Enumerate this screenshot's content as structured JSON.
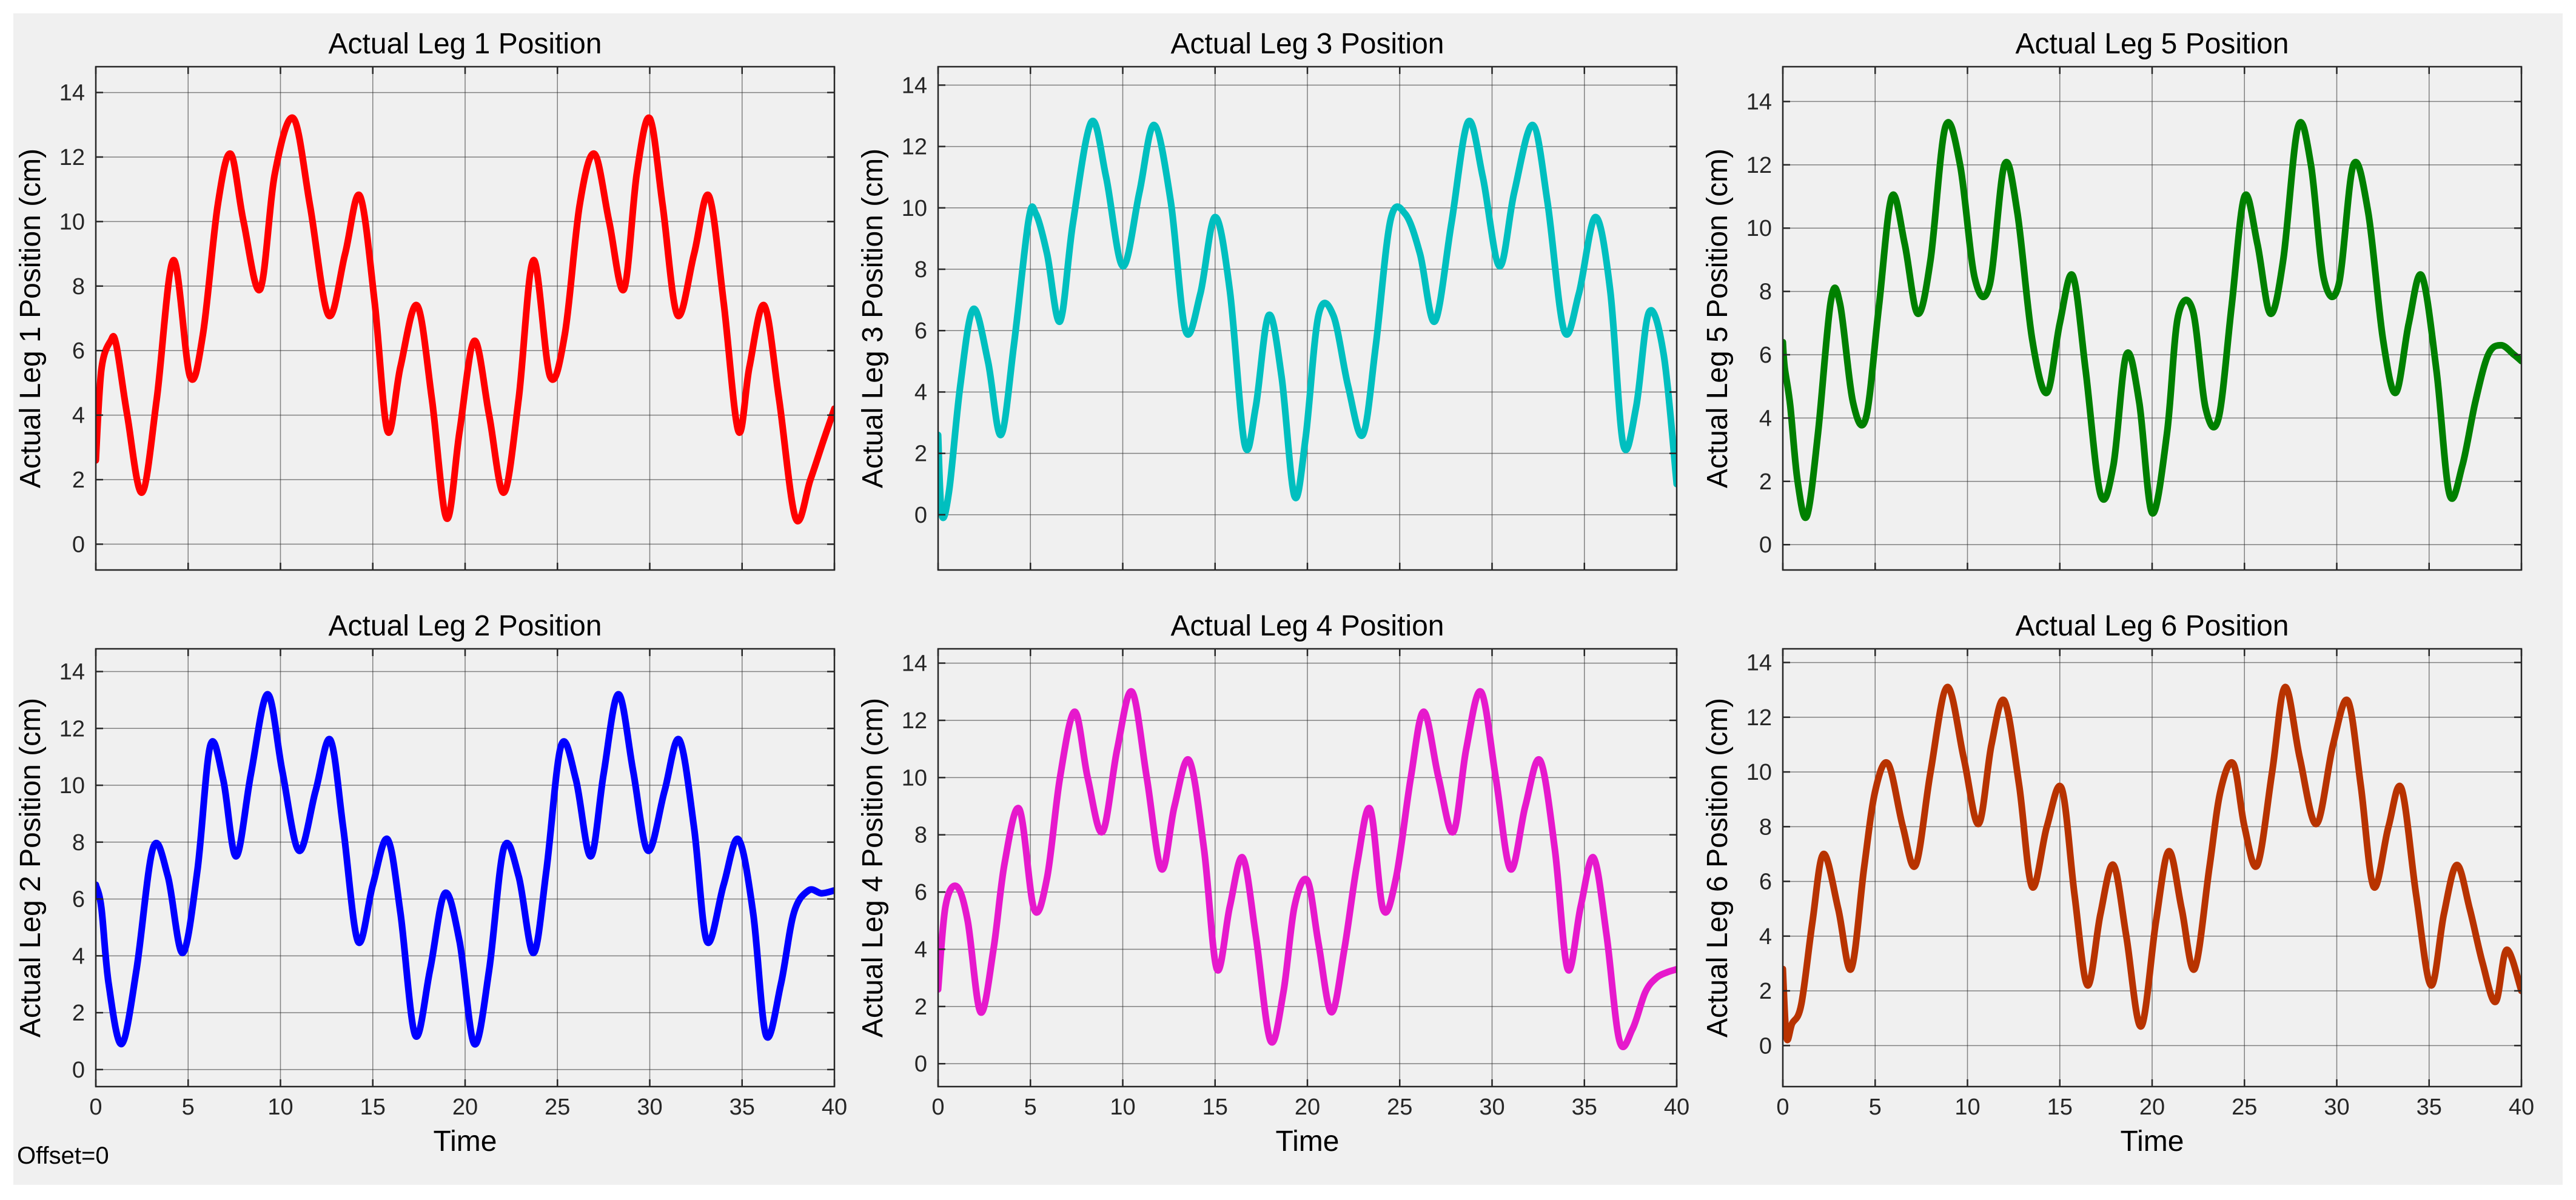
{
  "figure": {
    "background": "#f0f0f0",
    "axes_background": "#f0f0f0",
    "grid_color": "#262626",
    "offset_label": "Offset=0"
  },
  "chart_data": [
    {
      "type": "line",
      "title": "Actual Leg 1 Position",
      "xlabel": "",
      "ylabel": "Actual Leg 1 Position (cm)",
      "xlim": [
        0,
        40
      ],
      "ylim": [
        -0.8,
        14.8
      ],
      "xticks": [
        0,
        5,
        10,
        15,
        20,
        25,
        30,
        35,
        40
      ],
      "yticks": [
        0,
        2,
        4,
        6,
        8,
        10,
        12,
        14
      ],
      "show_xticklabels": false,
      "grid": true,
      "color": "#ff0000",
      "series": [
        {
          "name": "Leg 1",
          "x": [
            0,
            0.3,
            0.8,
            1.1,
            1.7,
            2.5,
            3.3,
            4.2,
            5.1,
            5.8,
            6.6,
            7.3,
            8.0,
            8.9,
            9.7,
            10.7,
            11.6,
            12.6,
            13.5,
            14.3,
            15.1,
            15.8,
            16.5,
            17.4,
            18.2,
            19.0,
            19.7,
            20.5,
            21.3,
            22.1,
            22.9,
            23.7,
            24.6,
            25.4,
            26.2,
            27.0,
            27.8,
            28.6,
            29.3,
            30.0,
            30.7,
            31.5,
            32.4,
            33.2,
            34.0,
            34.8,
            35.4,
            36.2,
            37.0,
            37.9,
            38.7,
            39.4,
            40.0
          ],
          "y": [
            2.6,
            5.4,
            6.3,
            6.2,
            4.0,
            1.6,
            4.5,
            8.8,
            5.2,
            6.5,
            10.5,
            12.1,
            10.0,
            7.9,
            11.5,
            13.2,
            10.5,
            7.1,
            9.0,
            10.8,
            7.5,
            3.5,
            5.5,
            7.4,
            4.5,
            0.8,
            3.5,
            6.3,
            4.0,
            1.6,
            4.5,
            8.8,
            5.2,
            6.5,
            10.5,
            12.1,
            10.0,
            7.9,
            11.5,
            13.2,
            10.5,
            7.1,
            9.0,
            10.8,
            7.5,
            3.5,
            5.5,
            7.4,
            4.5,
            0.8,
            2.0,
            3.2,
            4.2
          ]
        }
      ]
    },
    {
      "type": "line",
      "title": "Actual Leg 3 Position",
      "xlabel": "",
      "ylabel": "Actual Leg 3 Position (cm)",
      "xlim": [
        0,
        40
      ],
      "ylim": [
        -1.8,
        14.6
      ],
      "xticks": [
        0,
        5,
        10,
        15,
        20,
        25,
        30,
        35,
        40
      ],
      "yticks": [
        0,
        2,
        4,
        6,
        8,
        10,
        12,
        14
      ],
      "show_xticklabels": false,
      "grid": true,
      "color": "#00bfbf",
      "series": [
        {
          "name": "Leg 3",
          "x": [
            0,
            0.2,
            0.6,
            1.2,
            1.9,
            2.7,
            3.4,
            4.1,
            4.9,
            5.3,
            5.9,
            6.6,
            7.3,
            8.3,
            9.1,
            10.0,
            10.9,
            11.7,
            12.6,
            13.4,
            14.2,
            15.0,
            15.8,
            16.6,
            17.2,
            17.9,
            18.6,
            19.3,
            19.9,
            20.6,
            21.4,
            22.2,
            23.0,
            23.7,
            24.5,
            25.3,
            26.1,
            26.9,
            27.8,
            28.7,
            29.5,
            30.4,
            31.2,
            32.2,
            33.0,
            33.9,
            34.7,
            35.6,
            36.4,
            37.1,
            37.8,
            38.5,
            39.3,
            40.0
          ],
          "y": [
            2.6,
            0.0,
            0.8,
            4.2,
            6.7,
            5.0,
            2.6,
            5.5,
            9.6,
            9.8,
            8.5,
            6.3,
            9.5,
            12.8,
            11.0,
            8.1,
            10.5,
            12.7,
            10.2,
            6.0,
            7.2,
            9.7,
            7.3,
            2.3,
            3.5,
            6.5,
            4.5,
            0.6,
            2.5,
            6.5,
            6.5,
            4.2,
            2.6,
            5.5,
            9.6,
            9.8,
            8.5,
            6.3,
            9.5,
            12.8,
            11.0,
            8.1,
            10.5,
            12.7,
            10.2,
            6.0,
            7.2,
            9.7,
            7.3,
            2.3,
            3.5,
            6.6,
            5.2,
            1.0
          ]
        }
      ]
    },
    {
      "type": "line",
      "title": "Actual Leg 5 Position",
      "xlabel": "",
      "ylabel": "Actual Leg 5 Position (cm)",
      "xlim": [
        0,
        40
      ],
      "ylim": [
        -0.8,
        15.1
      ],
      "xticks": [
        0,
        5,
        10,
        15,
        20,
        25,
        30,
        35,
        40
      ],
      "yticks": [
        0,
        2,
        4,
        6,
        8,
        10,
        12,
        14
      ],
      "show_xticklabels": false,
      "grid": true,
      "color": "#008000",
      "series": [
        {
          "name": "Leg 5",
          "x": [
            0,
            0.1,
            0.4,
            0.8,
            1.3,
            1.9,
            2.6,
            3.1,
            3.8,
            4.5,
            5.2,
            5.9,
            6.6,
            7.3,
            8.0,
            8.8,
            9.6,
            10.4,
            11.2,
            12.0,
            12.7,
            13.5,
            14.3,
            15.0,
            15.7,
            16.4,
            17.2,
            17.9,
            18.6,
            19.3,
            20.0,
            20.8,
            21.4,
            22.2,
            22.9,
            23.6,
            24.3,
            25.0,
            25.7,
            26.4,
            27.1,
            27.9,
            28.6,
            29.3,
            30.1,
            30.9,
            31.7,
            32.5,
            33.2,
            33.9,
            34.6,
            35.4,
            36.1,
            36.8,
            37.5,
            38.2,
            38.9,
            39.6,
            40.0
          ],
          "y": [
            6.4,
            5.6,
            4.4,
            2.0,
            0.9,
            3.5,
            7.7,
            7.6,
            4.5,
            4.0,
            7.5,
            11.0,
            9.5,
            7.3,
            9.0,
            13.2,
            12.0,
            8.4,
            8.2,
            12.0,
            10.5,
            6.5,
            4.8,
            7.0,
            8.5,
            5.5,
            1.6,
            2.5,
            6.0,
            4.5,
            1.0,
            3.5,
            7.2,
            7.4,
            4.3,
            4.0,
            7.5,
            11.0,
            9.5,
            7.3,
            9.0,
            13.2,
            12.0,
            8.4,
            8.2,
            12.0,
            10.5,
            6.5,
            4.8,
            7.0,
            8.5,
            5.5,
            1.6,
            2.5,
            4.5,
            6.0,
            6.3,
            6.0,
            5.8
          ]
        }
      ]
    },
    {
      "type": "line",
      "title": "Actual Leg 2 Position",
      "xlabel": "Time",
      "ylabel": "Actual Leg 2 Position (cm)",
      "xlim": [
        0,
        40
      ],
      "ylim": [
        -0.6,
        14.8
      ],
      "xticks": [
        0,
        5,
        10,
        15,
        20,
        25,
        30,
        35,
        40
      ],
      "yticks": [
        0,
        2,
        4,
        6,
        8,
        10,
        12,
        14
      ],
      "show_xticklabels": true,
      "grid": true,
      "color": "#0000ff",
      "series": [
        {
          "name": "Leg 2",
          "x": [
            0,
            0.3,
            0.7,
            1.4,
            2.2,
            3.1,
            3.9,
            4.7,
            5.5,
            6.2,
            6.9,
            7.6,
            8.4,
            9.3,
            10.1,
            11.0,
            11.9,
            12.7,
            13.4,
            14.2,
            15.0,
            15.8,
            16.5,
            17.3,
            18.1,
            18.9,
            19.7,
            20.5,
            21.3,
            22.1,
            22.9,
            23.7,
            24.4,
            25.2,
            26.0,
            26.8,
            27.5,
            28.3,
            29.1,
            29.9,
            30.8,
            31.6,
            32.4,
            33.1,
            34.0,
            34.8,
            35.6,
            36.3,
            37.1,
            37.8,
            38.6,
            39.3,
            40.0
          ],
          "y": [
            6.5,
            5.7,
            3.0,
            0.9,
            3.5,
            7.8,
            6.8,
            4.1,
            7.0,
            11.4,
            10.2,
            7.5,
            10.4,
            13.2,
            10.5,
            7.7,
            9.8,
            11.6,
            8.5,
            4.5,
            6.5,
            8.1,
            5.5,
            1.2,
            3.5,
            6.2,
            4.5,
            0.9,
            3.5,
            7.8,
            6.8,
            4.1,
            7.0,
            11.4,
            10.2,
            7.5,
            10.4,
            13.2,
            10.5,
            7.7,
            9.8,
            11.6,
            8.5,
            4.5,
            6.5,
            8.1,
            5.5,
            1.2,
            3.0,
            5.5,
            6.3,
            6.2,
            6.3
          ]
        }
      ]
    },
    {
      "type": "line",
      "title": "Actual Leg 4 Position",
      "xlabel": "Time",
      "ylabel": "Actual Leg 4 Position (cm)",
      "xlim": [
        0,
        40
      ],
      "ylim": [
        -0.8,
        14.5
      ],
      "xticks": [
        0,
        5,
        10,
        15,
        20,
        25,
        30,
        35,
        40
      ],
      "yticks": [
        0,
        2,
        4,
        6,
        8,
        10,
        12,
        14
      ],
      "show_xticklabels": true,
      "grid": true,
      "color": "#e619cc",
      "series": [
        {
          "name": "Leg 4",
          "x": [
            0,
            0.4,
            1.0,
            1.6,
            2.3,
            3.0,
            3.6,
            4.4,
            5.2,
            5.9,
            6.6,
            7.4,
            8.1,
            8.9,
            9.7,
            10.5,
            11.3,
            12.1,
            12.8,
            13.6,
            14.4,
            15.1,
            15.8,
            16.5,
            17.2,
            18.0,
            18.7,
            19.3,
            20.0,
            20.6,
            21.3,
            22.0,
            22.7,
            23.4,
            24.1,
            24.8,
            25.6,
            26.3,
            27.1,
            27.9,
            28.6,
            29.4,
            30.2,
            31.0,
            31.8,
            32.6,
            33.4,
            34.1,
            34.8,
            35.5,
            36.2,
            36.9,
            37.6,
            38.3,
            38.9,
            39.5,
            40.0
          ],
          "y": [
            2.6,
            5.5,
            6.2,
            5.0,
            1.8,
            4.0,
            7.0,
            8.9,
            5.4,
            6.5,
            10.0,
            12.3,
            10.0,
            8.1,
            11.0,
            13.0,
            10.0,
            6.8,
            9.0,
            10.6,
            7.5,
            3.3,
            5.5,
            7.2,
            4.5,
            0.8,
            2.5,
            5.5,
            6.4,
            4.2,
            1.8,
            4.0,
            7.0,
            8.9,
            5.4,
            6.5,
            10.0,
            12.3,
            10.0,
            8.1,
            11.0,
            13.0,
            10.0,
            6.8,
            9.0,
            10.6,
            7.5,
            3.3,
            5.5,
            7.2,
            4.5,
            0.8,
            1.2,
            2.5,
            3.0,
            3.2,
            3.3
          ]
        }
      ]
    },
    {
      "type": "line",
      "title": "Actual Leg 6 Position",
      "xlabel": "Time",
      "ylabel": "Actual Leg 6 Position (cm)",
      "xlim": [
        0,
        40
      ],
      "ylim": [
        -1.5,
        14.5
      ],
      "xticks": [
        0,
        5,
        10,
        15,
        20,
        25,
        30,
        35,
        40
      ],
      "yticks": [
        0,
        2,
        4,
        6,
        8,
        10,
        12,
        14
      ],
      "show_xticklabels": true,
      "grid": true,
      "color": "#b83300",
      "series": [
        {
          "name": "Leg 6",
          "x": [
            0,
            0.2,
            0.5,
            1.0,
            1.6,
            2.2,
            3.0,
            3.7,
            4.4,
            5.0,
            5.7,
            6.5,
            7.2,
            8.0,
            8.9,
            9.8,
            10.6,
            11.3,
            12.0,
            12.8,
            13.5,
            14.3,
            15.1,
            15.8,
            16.5,
            17.2,
            17.9,
            18.6,
            19.4,
            20.2,
            20.9,
            21.6,
            22.3,
            23.1,
            23.7,
            24.4,
            25.0,
            25.7,
            26.5,
            27.2,
            28.0,
            28.9,
            29.8,
            30.6,
            31.3,
            32.0,
            32.8,
            33.5,
            34.3,
            35.1,
            35.8,
            36.5,
            37.2,
            37.9,
            38.6,
            39.2,
            40.0
          ],
          "y": [
            2.8,
            0.3,
            0.8,
            1.5,
            4.5,
            7.0,
            5.0,
            2.8,
            6.5,
            9.3,
            10.3,
            8.0,
            6.6,
            10.0,
            13.1,
            10.5,
            8.1,
            11.0,
            12.6,
            9.5,
            5.8,
            8.0,
            9.4,
            5.5,
            2.2,
            4.8,
            6.6,
            4.0,
            0.7,
            4.5,
            7.1,
            5.0,
            2.8,
            6.5,
            9.3,
            10.3,
            8.0,
            6.6,
            10.0,
            13.1,
            10.5,
            8.1,
            11.0,
            12.6,
            9.5,
            5.8,
            8.0,
            9.4,
            5.5,
            2.2,
            4.8,
            6.6,
            5.0,
            3.0,
            1.6,
            3.5,
            2.0
          ]
        }
      ]
    }
  ]
}
